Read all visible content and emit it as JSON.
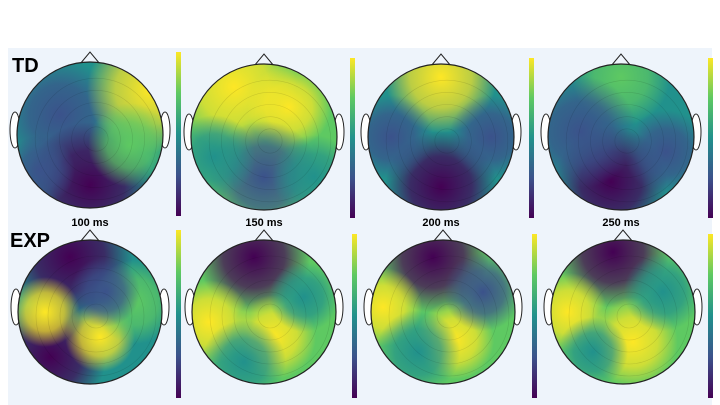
{
  "rows": [
    {
      "label": "TD"
    },
    {
      "label": "EXP"
    }
  ],
  "time_labels": [
    "100 ms",
    "150 ms",
    "200 ms",
    "250 ms"
  ]
}
